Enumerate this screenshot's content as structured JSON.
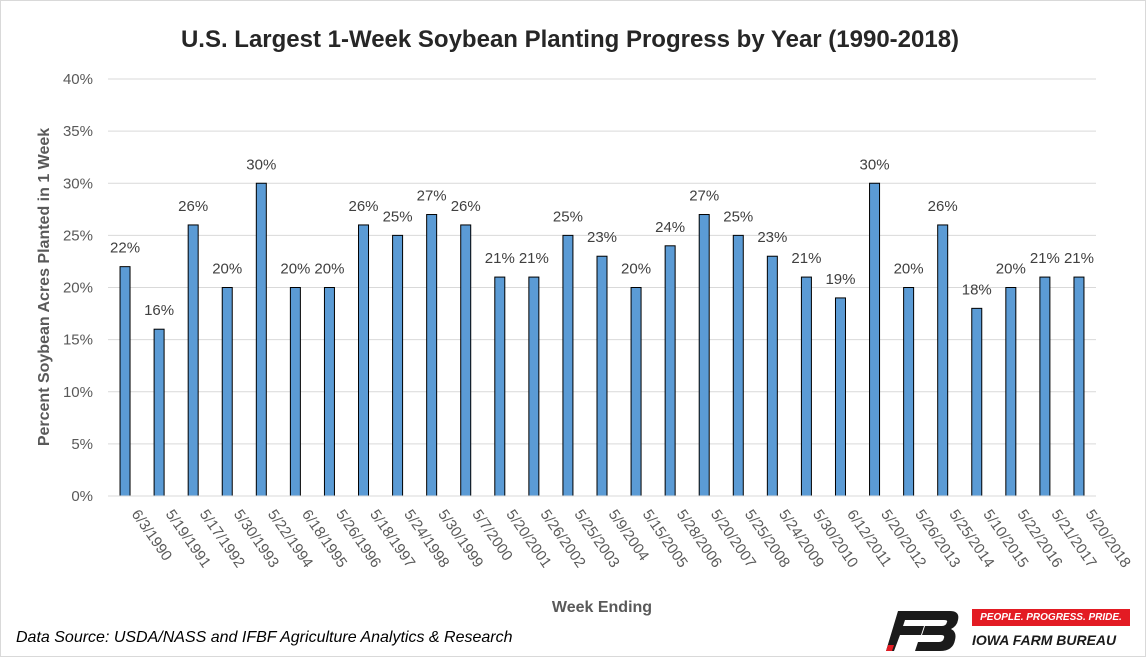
{
  "chart_data": {
    "type": "bar",
    "title": "U.S. Largest 1-Week Soybean Planting Progress by Year (1990-2018)",
    "xlabel": "Week Ending",
    "ylabel": "Percent Soybean Acres Planted in 1 Week",
    "ylim": [
      0,
      40
    ],
    "yticks": [
      "0%",
      "5%",
      "10%",
      "15%",
      "20%",
      "25%",
      "30%",
      "35%",
      "40%"
    ],
    "grid": true,
    "categories": [
      "6/3/1990",
      "5/19/1991",
      "5/17/1992",
      "5/30/1993",
      "5/22/1994",
      "6/18/1995",
      "5/26/1996",
      "5/18/1997",
      "5/24/1998",
      "5/30/1999",
      "5/7/2000",
      "5/20/2001",
      "5/26/2002",
      "5/25/2003",
      "5/9/2004",
      "5/15/2005",
      "5/28/2006",
      "5/20/2007",
      "5/25/2008",
      "5/24/2009",
      "5/30/2010",
      "6/12/2011",
      "5/20/2012",
      "5/26/2013",
      "5/25/2014",
      "5/10/2015",
      "5/22/2016",
      "5/21/2017",
      "5/20/2018"
    ],
    "values": [
      22,
      16,
      26,
      20,
      30,
      20,
      20,
      26,
      25,
      27,
      26,
      21,
      21,
      25,
      23,
      20,
      24,
      27,
      25,
      23,
      21,
      19,
      30,
      20,
      26,
      18,
      20,
      21,
      21
    ],
    "data_labels": [
      "22%",
      "16%",
      "26%",
      "20%",
      "30%",
      "20%",
      "20%",
      "26%",
      "25%",
      "27%",
      "26%",
      "21%",
      "21%",
      "25%",
      "23%",
      "20%",
      "24%",
      "27%",
      "25%",
      "23%",
      "21%",
      "19%",
      "30%",
      "20%",
      "26%",
      "18%",
      "20%",
      "21%",
      "21%"
    ],
    "colors": {
      "bar": "#5b9bd5",
      "bar_outline": "#000000",
      "grid": "#d9d9d9"
    }
  },
  "source": "Data Source: USDA/NASS and IFBF Agriculture Analytics & Research",
  "logo": {
    "tagline": "PEOPLE. PROGRESS. PRIDE.",
    "name": "IOWA FARM BUREAU",
    "icon": "fb-logo-icon",
    "colors": {
      "mark": "#1b1b1b",
      "accent": "#e31b23"
    }
  }
}
